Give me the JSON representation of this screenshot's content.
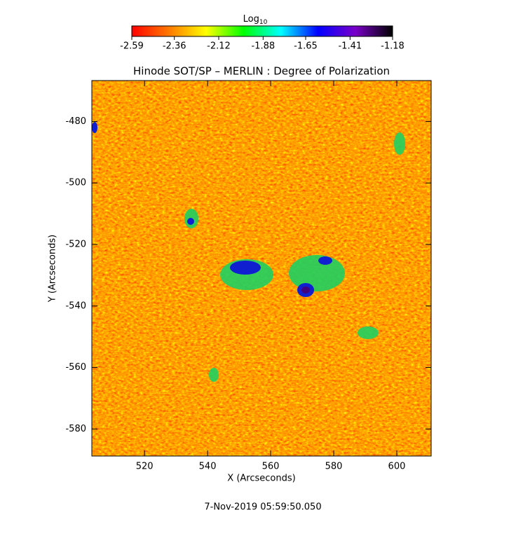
{
  "chart_data": {
    "type": "heatmap",
    "title": "Hinode SOT/SP – MERLIN : Degree of Polarization",
    "xlabel": "X (Arcseconds)",
    "ylabel": "Y (Arcseconds)",
    "footer": "7-Nov-2019 05:59:50.050",
    "xlim": [
      503.3,
      610.9
    ],
    "xticks": [
      520,
      540,
      560,
      580,
      600
    ],
    "ylim": [
      -588.8,
      -466.7
    ],
    "yticks": [
      -580,
      -560,
      -540,
      -520,
      -500,
      -480
    ],
    "colorbar": {
      "label": "Log",
      "label_subscript": "10",
      "lim": [
        -2.59,
        -1.18
      ],
      "ticks": [
        -2.59,
        -2.36,
        -2.12,
        -1.88,
        -1.65,
        -1.41,
        -1.18
      ],
      "colors": [
        "#ff0000",
        "#ff7a00",
        "#ffff00",
        "#00ff00",
        "#00ffff",
        "#0000ff",
        "#7a00c8",
        "#000000"
      ]
    }
  }
}
